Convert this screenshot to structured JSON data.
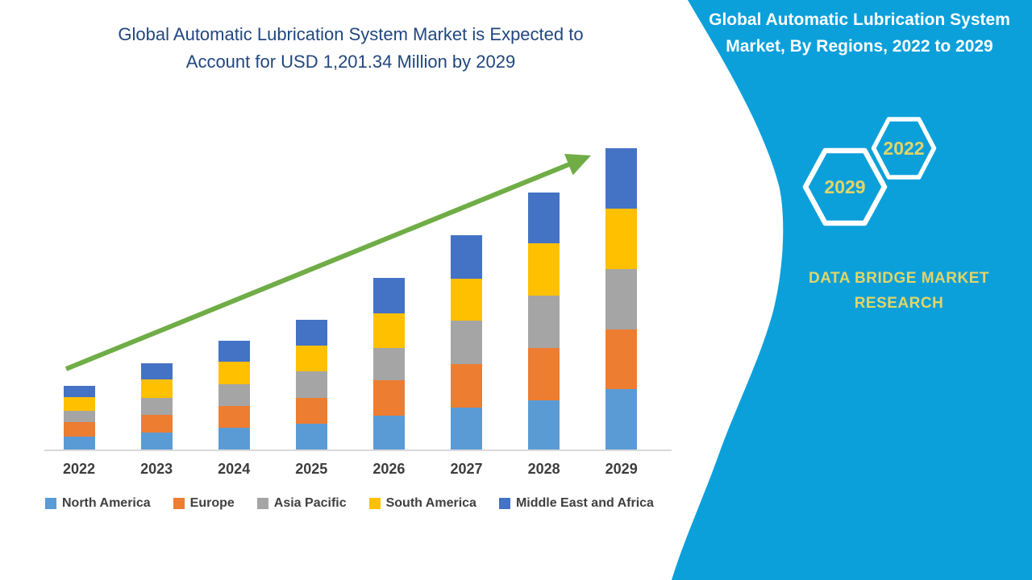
{
  "chart_title": {
    "line1": "Global Automatic Lubrication System Market is Expected to",
    "line2": "Account for USD 1,201.34 Million by 2029",
    "full": "Global Automatic Lubrication System Market is Expected to Account for USD 1,201.34 Million by 2029",
    "color": "#21477F"
  },
  "side_panel": {
    "title_line1": "Global Automatic Lubrication System",
    "title_line2": "Market, By Regions, 2022 to 2029",
    "hexagons": [
      {
        "label": "2029"
      },
      {
        "label": "2022"
      }
    ],
    "brand_line1": "DATA BRIDGE MARKET",
    "brand_line2": "RESEARCH",
    "background_color": "#0CA0DA",
    "accent_text_color": "#E2D568",
    "title_text_color": "#ffffff"
  },
  "chart_data": {
    "type": "bar",
    "stacked": true,
    "title": "Global Automatic Lubrication System Market is Expected to Account for USD 1,201.34 Million by 2029",
    "unit": "USD Million",
    "categories": [
      "2022",
      "2023",
      "2024",
      "2025",
      "2026",
      "2027",
      "2028",
      "2029"
    ],
    "series": [
      {
        "name": "North America",
        "color": "#5B9BD5",
        "values": [
          51,
          67,
          86,
          103,
          136,
          166,
          196,
          240
        ]
      },
      {
        "name": "Europe",
        "color": "#ED7D31",
        "values": [
          58,
          71,
          88,
          103,
          139,
          173,
          210,
          238
        ]
      },
      {
        "name": "Asia Pacific",
        "color": "#A5A5A5",
        "values": [
          46,
          68,
          86,
          104,
          130,
          175,
          207,
          241
        ]
      },
      {
        "name": "South America",
        "color": "#FFC000",
        "values": [
          55,
          75,
          89,
          105,
          139,
          167,
          209,
          241
        ]
      },
      {
        "name": "Middle East and Africa",
        "color": "#4472C4",
        "values": [
          45,
          64,
          85,
          103,
          141,
          175,
          204,
          241.34
        ]
      }
    ],
    "totals": [
      255,
      345,
      434,
      518,
      685,
      856,
      1026,
      1201.34
    ],
    "ylim": [
      0,
      1250
    ],
    "y_axis_visible": false,
    "gridlines": false,
    "legend_position": "bottom",
    "annotations": [
      {
        "type": "trend-arrow",
        "color": "#70AD47"
      }
    ],
    "axis_label_color": "#3d3d3d",
    "axis_line_color": "#d9d9d9"
  }
}
